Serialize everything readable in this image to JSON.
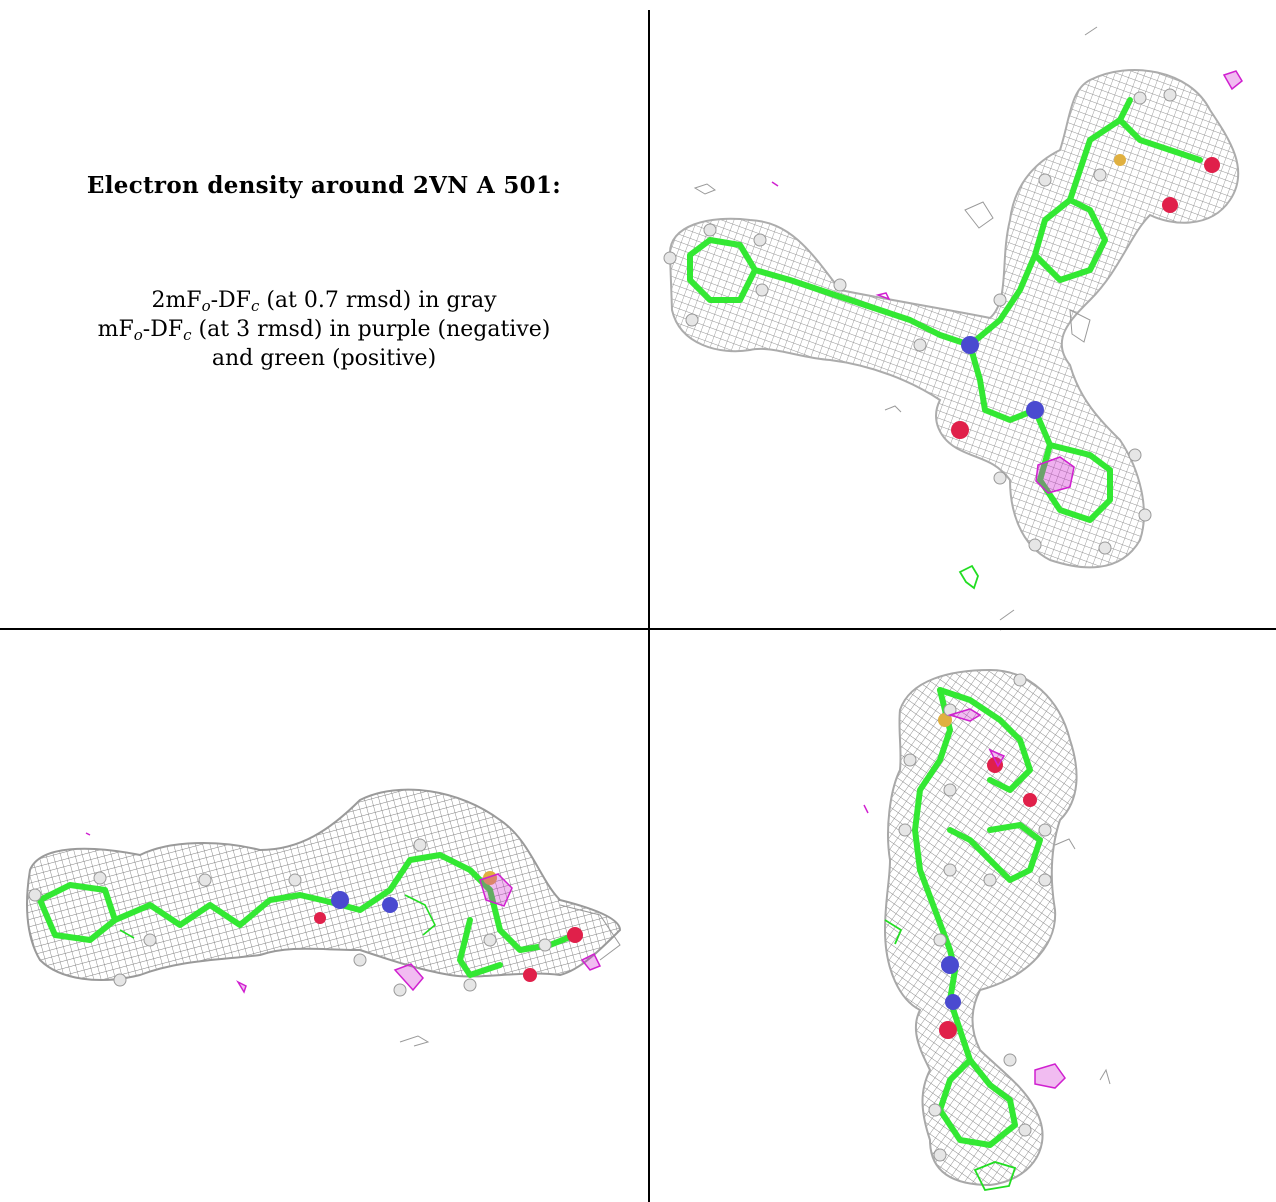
{
  "panel_text": {
    "title": "Electron density around 2VN A 501:",
    "line1_main": "2mF",
    "line1_sub_o": "o",
    "line1_mid": "-DF",
    "line1_sub_c": "c",
    "line1_rest": " (at 0.7 rmsd) in gray",
    "line2_main": "mF",
    "line2_sub_o": "o",
    "line2_mid": "-DF",
    "line2_sub_c": "c",
    "line2_rest": " (at 3 rmsd) in purple (negative)",
    "line3": "and green (positive)"
  },
  "colors": {
    "density_gray": "#9a9a9a",
    "carbon_green": "#33e833",
    "nitrogen_blue": "#4a4ad0",
    "oxygen_red": "#e0204a",
    "sulfur_yellow": "#e0b040",
    "negative_purple": "#d020d0",
    "positive_green": "#22dd22",
    "hydrogen_white": "#e6e6e6"
  },
  "views": [
    {
      "name": "view-top-right",
      "icon": "molecule-density-render"
    },
    {
      "name": "view-bottom-left",
      "icon": "molecule-density-render"
    },
    {
      "name": "view-bottom-right",
      "icon": "molecule-density-render"
    }
  ]
}
